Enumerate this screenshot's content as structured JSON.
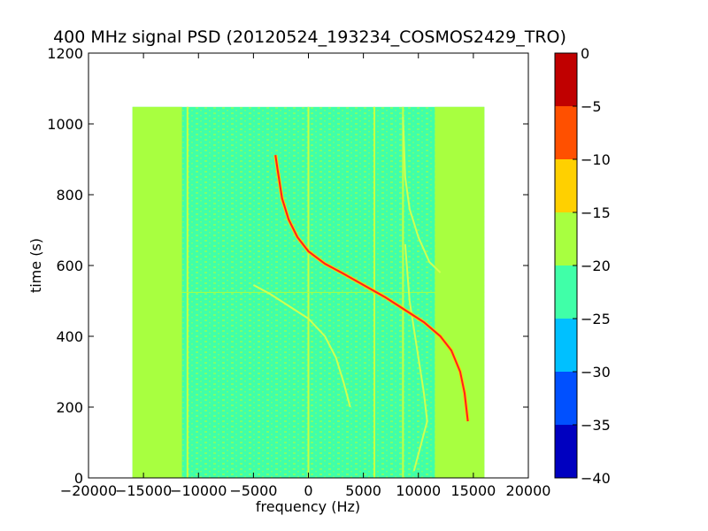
{
  "chart_data": {
    "type": "heatmap",
    "title": "400 MHz signal PSD (20120524_193234_COSMOS2429_TRO)",
    "xlabel": "frequency (Hz)",
    "ylabel": "time (s)",
    "xlim": [
      -20000,
      20000
    ],
    "ylim": [
      0,
      1200
    ],
    "xticks": [
      -20000,
      -15000,
      -10000,
      -5000,
      0,
      5000,
      10000,
      15000,
      20000
    ],
    "xtick_labels": [
      "−20000",
      "−15000",
      "−10000",
      "−5000",
      "0",
      "5000",
      "10000",
      "15000",
      "20000"
    ],
    "yticks": [
      0,
      200,
      400,
      600,
      800,
      1000,
      1200
    ],
    "ytick_labels": [
      "0",
      "200",
      "400",
      "600",
      "800",
      "1000",
      "1200"
    ],
    "data_extent": {
      "freq_min": -16000,
      "freq_max": 16000,
      "time_min": 0,
      "time_max": 1048
    },
    "colorbar": {
      "range": [
        -40,
        0
      ],
      "ticks": [
        0,
        -5,
        -10,
        -15,
        -20,
        -25,
        -30,
        -35,
        -40
      ],
      "tick_labels": [
        "0",
        "−5",
        "−10",
        "−15",
        "−20",
        "−25",
        "−30",
        "−35",
        "−40"
      ],
      "levels": [
        {
          "min": -40,
          "max": -35,
          "color": "#0000c0"
        },
        {
          "min": -35,
          "max": -30,
          "color": "#0050ff"
        },
        {
          "min": -30,
          "max": -25,
          "color": "#00c0ff"
        },
        {
          "min": -25,
          "max": -20,
          "color": "#40ffa8"
        },
        {
          "min": -20,
          "max": -15,
          "color": "#a8ff40"
        },
        {
          "min": -15,
          "max": -10,
          "color": "#ffd000"
        },
        {
          "min": -10,
          "max": -5,
          "color": "#ff5000"
        },
        {
          "min": -5,
          "max": 0,
          "color": "#c00000"
        }
      ]
    },
    "background_level_color": "#40ffa8",
    "edge_level_color": "#a8ff40",
    "edge_bands_hz": [
      [
        -16000,
        -11500
      ],
      [
        11500,
        16000
      ]
    ],
    "vertical_lines_hz": [
      -11000,
      0,
      6000,
      8600
    ],
    "horizontal_line_time_s": 524,
    "main_trace": {
      "color": "#ff2020",
      "points": [
        [
          -3000,
          912
        ],
        [
          -2800,
          870
        ],
        [
          -2400,
          790
        ],
        [
          -1800,
          730
        ],
        [
          -1000,
          680
        ],
        [
          0,
          640
        ],
        [
          1500,
          605
        ],
        [
          3000,
          580
        ],
        [
          5000,
          545
        ],
        [
          7000,
          510
        ],
        [
          9000,
          470
        ],
        [
          10500,
          440
        ],
        [
          12000,
          400
        ],
        [
          13000,
          360
        ],
        [
          13800,
          300
        ],
        [
          14200,
          240
        ],
        [
          14500,
          160
        ]
      ]
    },
    "secondary_traces": [
      {
        "color": "#d0ff50",
        "points": [
          [
            -5000,
            545
          ],
          [
            -3500,
            520
          ],
          [
            -1500,
            480
          ],
          [
            0,
            450
          ],
          [
            1500,
            400
          ],
          [
            2500,
            340
          ],
          [
            3200,
            270
          ],
          [
            3800,
            200
          ]
        ]
      },
      {
        "color": "#d0ff50",
        "points": [
          [
            8600,
            1020
          ],
          [
            8800,
            850
          ],
          [
            9200,
            760
          ],
          [
            10000,
            680
          ],
          [
            11000,
            610
          ],
          [
            12000,
            580
          ]
        ]
      },
      {
        "color": "#d0ff50",
        "points": [
          [
            8800,
            660
          ],
          [
            9200,
            500
          ],
          [
            9800,
            380
          ],
          [
            10500,
            240
          ],
          [
            10800,
            160
          ],
          [
            10200,
            90
          ],
          [
            9600,
            20
          ]
        ]
      }
    ]
  }
}
